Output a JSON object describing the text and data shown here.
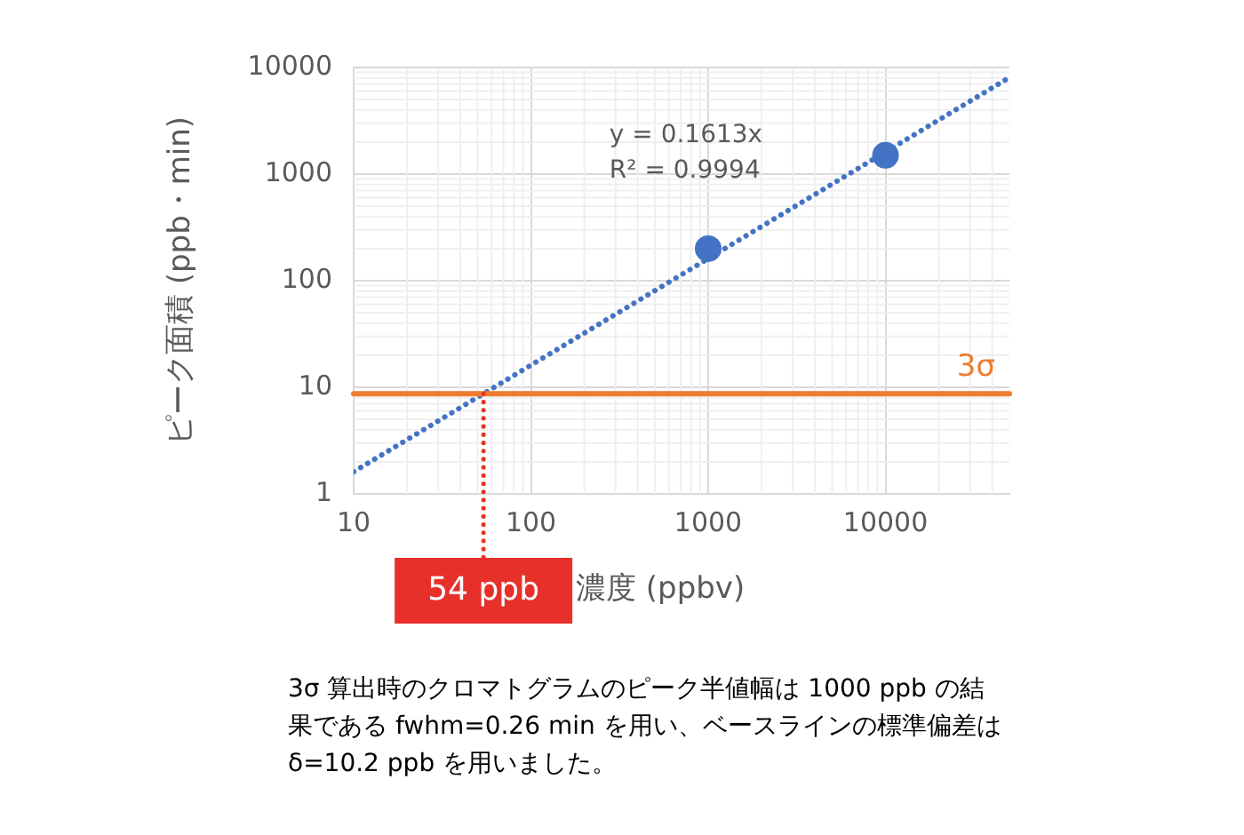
{
  "chart_data": {
    "type": "scatter",
    "xlabel": "濃度 (ppbv)",
    "ylabel": "ピーク面積 (ppb・min)",
    "log": "xy",
    "xlim": [
      10,
      50000
    ],
    "xticks": [
      10,
      100,
      1000,
      10000
    ],
    "ylim": [
      1,
      10000
    ],
    "yticks": [
      1,
      10,
      100,
      1000,
      10000
    ],
    "grid": true,
    "legend": false,
    "series": [
      {
        "type": "scatter",
        "color": "#4472c4",
        "x": [
          1000,
          10000
        ],
        "values": [
          200,
          1500
        ],
        "marker": "circle"
      },
      {
        "type": "line",
        "color": "#4472c4",
        "x": [
          10,
          50000
        ],
        "values": [
          1.613,
          8065
        ],
        "line_style": "dotted",
        "marker": "none"
      }
    ],
    "ref_lines": [
      {
        "axis": "y",
        "value": 8.7,
        "label": "3σ",
        "color": "#ed7d31",
        "line_style": "solid"
      },
      {
        "axis": "x",
        "value": 54,
        "label": "54 ppb",
        "color": "#e8302a",
        "line_style": "dotted"
      }
    ],
    "annotations": [
      "y = 0.1613x\nR² = 0.9994",
      "3σ 算出時のクロマトグラムのピーク半値幅は 1000 ppb の結果である fwhm=0.26 min を用い、ベースラインの標準偏差は δ=10.2 ppb を用いました。"
    ]
  }
}
